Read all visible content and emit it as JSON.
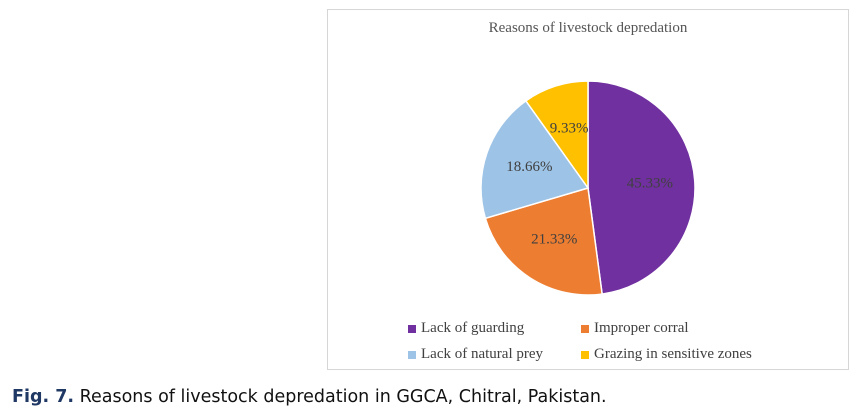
{
  "chart_data": {
    "type": "pie",
    "title": "Reasons of livestock depredation",
    "categories": [
      "Lack of guarding",
      "Improper corral",
      "Lack of natural prey",
      "Grazing in sensitive zones"
    ],
    "values": [
      45.33,
      21.33,
      18.66,
      9.33
    ],
    "value_labels": [
      "45.33%",
      "21.33%",
      "18.66%",
      "9.33%"
    ],
    "colors": [
      "#7030a0",
      "#ed7d31",
      "#9dc3e6",
      "#ffc000"
    ],
    "start_angle_deg": 0,
    "direction": "clockwise",
    "legend_position": "bottom"
  },
  "caption": {
    "prefix": "Fig. 7.",
    "text": " Reasons of livestock depredation in GGCA, Chitral, Pakistan."
  }
}
